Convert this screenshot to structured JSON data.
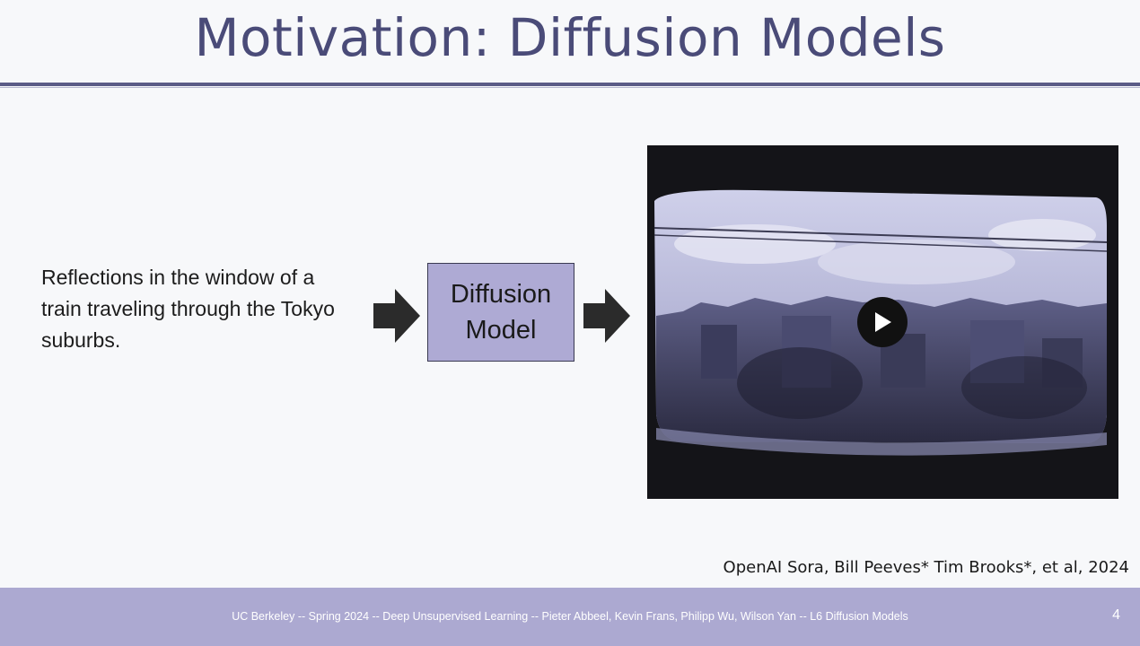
{
  "slide": {
    "title": "Motivation: Diffusion Models",
    "prompt_text": "Reflections in the window of a train traveling through the Tokyo suburbs.",
    "model_label": "Diffusion\nModel",
    "citation": "OpenAI Sora, Bill Peeves* Tim Brooks*, et al, 2024"
  },
  "footer": {
    "text": "UC Berkeley -- Spring 2024 -- Deep Unsupervised Learning -- Pieter Abbeel, Kevin Frans, Philipp Wu, Wilson Yan  -- L6 Diffusion Models",
    "page_number": "4"
  },
  "colors": {
    "title": "#4a4b78",
    "accent_box": "#aeaad4",
    "footer_bg": "#aca9d1"
  },
  "icons": {
    "arrow": "arrow-right-icon",
    "play": "play-icon"
  }
}
